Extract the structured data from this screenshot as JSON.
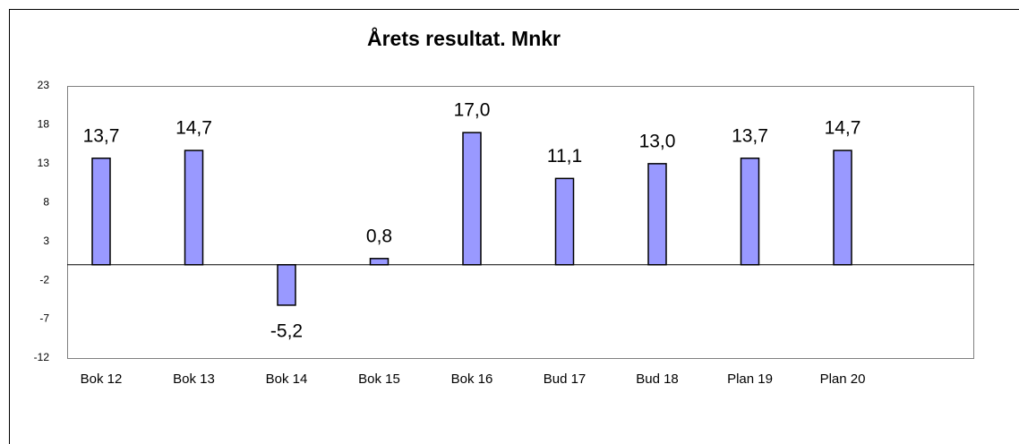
{
  "chart_data": {
    "type": "bar",
    "title": "Årets resultat. Mnkr",
    "categories": [
      "Bok 12",
      "Bok 13",
      "Bok 14",
      "Bok 15",
      "Bok 16",
      "Bud 17",
      "Bud 18",
      "Plan 19",
      "Plan  20",
      null
    ],
    "values": [
      13.7,
      14.7,
      -5.2,
      0.8,
      17.0,
      11.1,
      13.0,
      13.7,
      14.7,
      null
    ],
    "value_labels": [
      "13,7",
      "14,7",
      "-5,2",
      "0,8",
      "17,0",
      "11,1",
      "13,0",
      "13,7",
      "14,7",
      null
    ],
    "color": "#9999ff",
    "ylim": [
      -12,
      23
    ],
    "yticks": [
      -12,
      -7,
      -2,
      3,
      8,
      13,
      18,
      23
    ],
    "grid": false
  }
}
